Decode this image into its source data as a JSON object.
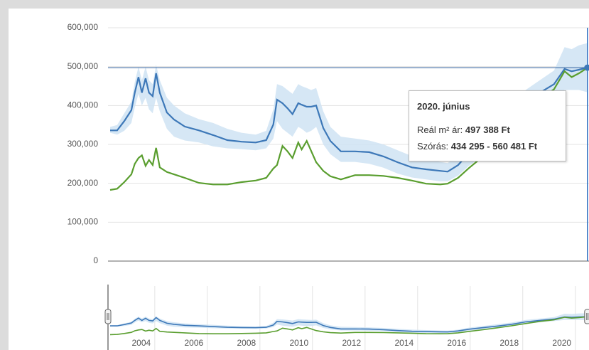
{
  "chart_data": {
    "type": "line",
    "x": [
      2002.3,
      2002.57,
      2002.84,
      2003.11,
      2003.24,
      2003.38,
      2003.51,
      2003.65,
      2003.78,
      2003.92,
      2004.05,
      2004.19,
      2004.46,
      2004.73,
      2005.14,
      2005.68,
      2006.22,
      2006.76,
      2007.3,
      2007.84,
      2008.24,
      2008.51,
      2008.65,
      2008.86,
      2009.05,
      2009.24,
      2009.46,
      2009.59,
      2009.78,
      2009.95,
      2010.14,
      2010.41,
      2010.68,
      2011.08,
      2011.62,
      2012.16,
      2012.7,
      2013.24,
      2013.78,
      2014.32,
      2014.86,
      2015.14,
      2015.54,
      2015.95,
      2016.49,
      2017.03,
      2017.57,
      2018.11,
      2018.65,
      2019.19,
      2019.59,
      2019.86,
      2020.14,
      2020.46
    ],
    "series": [
      {
        "color": "#3d78b8",
        "values": [
          336000,
          336000,
          360000,
          388000,
          433000,
          473000,
          433000,
          470000,
          433000,
          424000,
          483000,
          433000,
          382000,
          364000,
          346000,
          336000,
          324000,
          311000,
          307000,
          305000,
          311000,
          351000,
          415000,
          406000,
          393000,
          378000,
          406000,
          402000,
          397000,
          397000,
          400000,
          342000,
          309000,
          282000,
          282000,
          280000,
          269000,
          254000,
          241000,
          236000,
          232000,
          230000,
          247000,
          278000,
          305000,
          333000,
          364000,
          406000,
          433000,
          455000,
          494000,
          488000,
          492000,
          497388
        ]
      },
      {
        "color": "#5a9e2f",
        "values": [
          183000,
          186000,
          203000,
          223000,
          250000,
          265000,
          272000,
          245000,
          260000,
          247000,
          291000,
          241000,
          229000,
          223000,
          214000,
          201000,
          197000,
          197000,
          203000,
          207000,
          214000,
          238000,
          247000,
          296000,
          282000,
          265000,
          305000,
          287000,
          309000,
          283000,
          254000,
          232000,
          218000,
          210000,
          221000,
          221000,
          219000,
          214000,
          207000,
          199000,
          197000,
          199000,
          214000,
          239000,
          269000,
          302000,
          338000,
          378000,
          415000,
          442000,
          488000,
          473000,
          483000,
          497000
        ]
      }
    ],
    "band": {
      "color": "#cfe3f3",
      "low": [
        330000,
        325000,
        335000,
        355000,
        395000,
        430000,
        400000,
        420000,
        390000,
        380000,
        420000,
        385000,
        340000,
        320000,
        310000,
        305000,
        295000,
        290000,
        288000,
        285000,
        290000,
        315000,
        360000,
        340000,
        330000,
        320000,
        345000,
        340000,
        330000,
        335000,
        345000,
        300000,
        275000,
        255000,
        255000,
        250000,
        240000,
        225000,
        215000,
        210000,
        205000,
        205000,
        220000,
        245000,
        270000,
        300000,
        330000,
        370000,
        400000,
        420000,
        440000,
        440000,
        440000,
        434295
      ],
      "high": [
        345000,
        350000,
        380000,
        410000,
        460000,
        500000,
        465000,
        500000,
        465000,
        455000,
        505000,
        465000,
        420000,
        400000,
        380000,
        365000,
        355000,
        340000,
        330000,
        325000,
        335000,
        390000,
        455000,
        450000,
        440000,
        430000,
        455000,
        450000,
        445000,
        440000,
        445000,
        385000,
        345000,
        320000,
        315000,
        310000,
        300000,
        285000,
        270000,
        262000,
        255000,
        252000,
        270000,
        305000,
        335000,
        365000,
        395000,
        440000,
        465000,
        490000,
        550000,
        545000,
        555000,
        560481
      ]
    },
    "xlim": [
      2002.22,
      2020.52
    ],
    "ylim": [
      0,
      600000
    ],
    "yticks": [
      0,
      {
        "value": 100000,
        "label": "100,000"
      },
      {
        "value": 200000,
        "label": "200,000"
      },
      {
        "value": 300000,
        "label": "300,000"
      },
      {
        "value": 400000,
        "label": "400,000"
      },
      {
        "value": 500000,
        "label": "500,000"
      },
      {
        "value": 600000,
        "label": "600,000"
      }
    ],
    "navigator_xticks": [
      2004,
      2006,
      2008,
      2010,
      2012,
      2014,
      2016,
      2018,
      2020
    ],
    "crosshair": 497388,
    "grid": true,
    "tooltip": {
      "title": "2020. június",
      "label1": "Reál m² ár:",
      "value1": "497 388 Ft",
      "label2": "Szórás:",
      "value2": "434 295 - 560 481 Ft"
    }
  }
}
